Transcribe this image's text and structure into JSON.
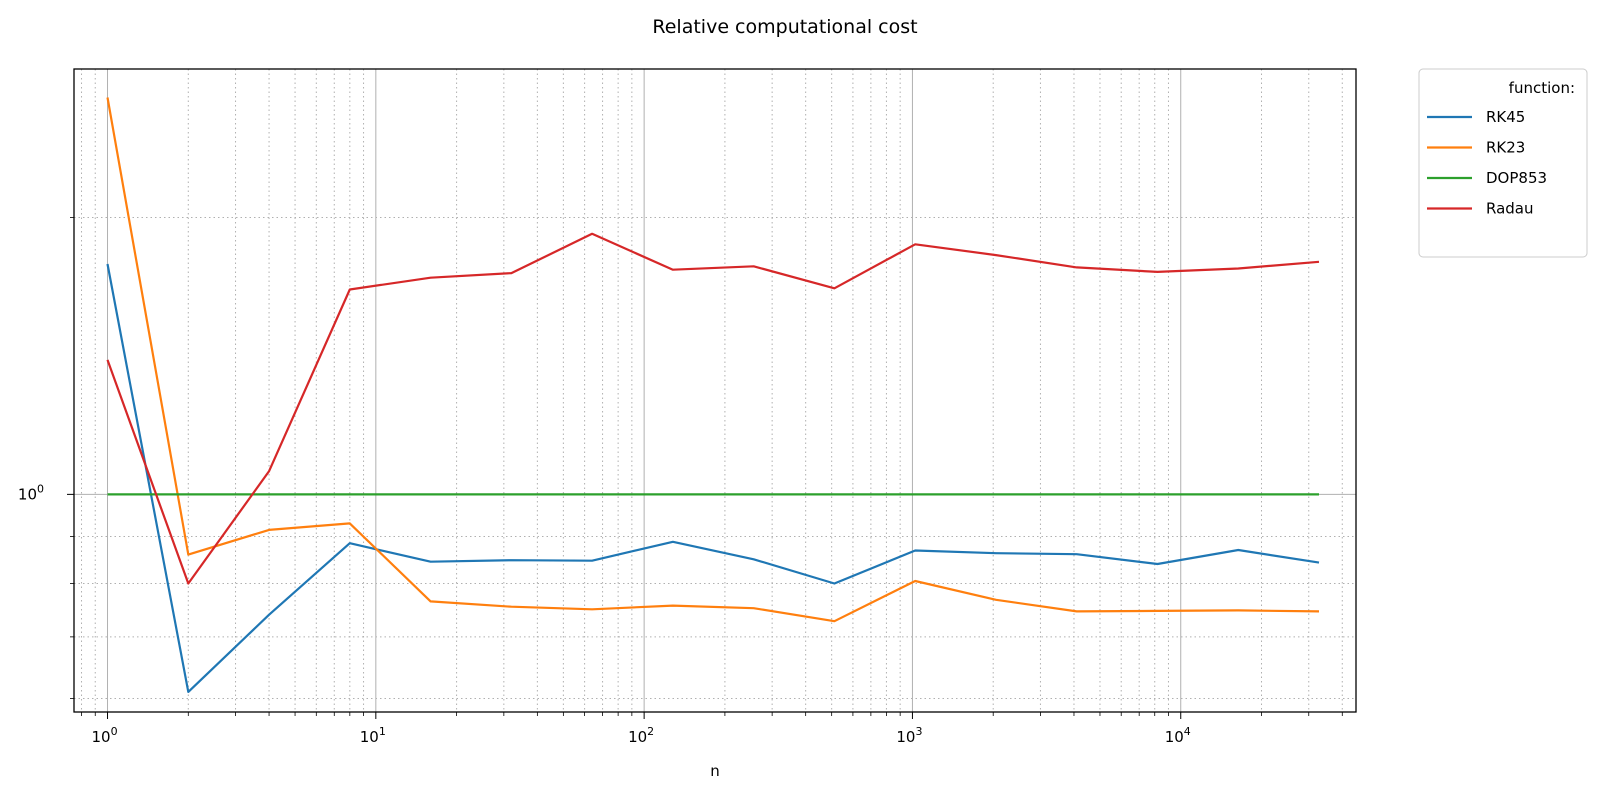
{
  "chart_data": {
    "type": "line",
    "title": "Relative computational cost",
    "xlabel": "n",
    "ylabel": "",
    "x_scale": "log",
    "y_scale": "log",
    "xlim": [
      0.75,
      45000
    ],
    "ylim": [
      0.58,
      2.9
    ],
    "x_ticks": [
      {
        "value": 1,
        "base": "10",
        "exp": "0"
      },
      {
        "value": 10,
        "base": "10",
        "exp": "1"
      },
      {
        "value": 100,
        "base": "10",
        "exp": "2"
      },
      {
        "value": 1000,
        "base": "10",
        "exp": "3"
      },
      {
        "value": 10000,
        "base": "10",
        "exp": "4"
      }
    ],
    "y_ticks": [
      {
        "value": 1,
        "base": "10",
        "exp": "0"
      }
    ],
    "grid": {
      "major": true,
      "minor": true,
      "minor_style": "dotted"
    },
    "legend": {
      "title": "function:",
      "placement": "outside-top-right"
    },
    "x": [
      1,
      2,
      4,
      8,
      16,
      32,
      64,
      128,
      256,
      512,
      1024,
      2048,
      4096,
      8192,
      16384,
      32768
    ],
    "series": [
      {
        "name": "RK45",
        "color": "#1f77b4",
        "values": [
          1.78,
          0.61,
          0.74,
          0.885,
          0.845,
          0.848,
          0.847,
          0.888,
          0.85,
          0.8,
          0.869,
          0.863,
          0.861,
          0.84,
          0.87,
          0.843
        ]
      },
      {
        "name": "RK23",
        "color": "#ff7f0e",
        "values": [
          2.7,
          0.86,
          0.915,
          0.93,
          0.765,
          0.755,
          0.75,
          0.757,
          0.752,
          0.728,
          0.805,
          0.768,
          0.746,
          0.747,
          0.748,
          0.746
        ]
      },
      {
        "name": "DOP853",
        "color": "#2ca02c",
        "values": [
          1,
          1,
          1,
          1,
          1,
          1,
          1,
          1,
          1,
          1,
          1,
          1,
          1,
          1,
          1,
          1
        ]
      },
      {
        "name": "Radau",
        "color": "#d62728",
        "values": [
          1.4,
          0.8,
          1.06,
          1.67,
          1.72,
          1.74,
          1.92,
          1.755,
          1.77,
          1.675,
          1.87,
          1.82,
          1.765,
          1.745,
          1.76,
          1.79
        ]
      }
    ]
  }
}
